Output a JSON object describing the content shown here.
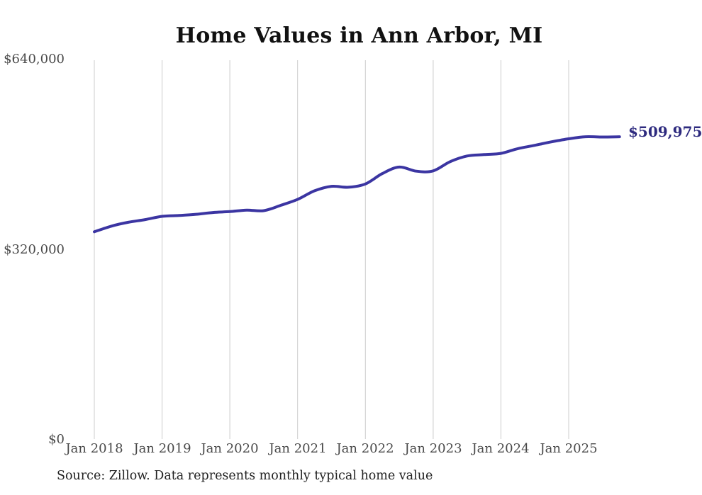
{
  "page": {
    "background": "#ffffff"
  },
  "chart": {
    "title": "Home Values in Ann Arbor, MI",
    "end_label": "$509,975",
    "source": "Source: Zillow. Data represents monthly typical home value",
    "colors": {
      "line": "#3b35a2",
      "end_label": "#2e2b7f",
      "gridline": "#cccccc",
      "tick_text": "#4a4a4a",
      "title_text": "#111111",
      "source_text": "#222222"
    }
  },
  "chart_data": {
    "type": "line",
    "title": "Home Values in Ann Arbor, MI",
    "series_name": "Typical home value (monthly, $)",
    "x": [
      "2018-01",
      "2018-04",
      "2018-07",
      "2018-10",
      "2019-01",
      "2019-04",
      "2019-07",
      "2019-10",
      "2020-01",
      "2020-04",
      "2020-07",
      "2020-10",
      "2021-01",
      "2021-04",
      "2021-07",
      "2021-10",
      "2022-01",
      "2022-04",
      "2022-07",
      "2022-10",
      "2023-01",
      "2023-04",
      "2023-07",
      "2023-10",
      "2024-01",
      "2024-04",
      "2024-07",
      "2024-10",
      "2025-01",
      "2025-04",
      "2025-07",
      "2025-10"
    ],
    "values": [
      350000,
      359500,
      366000,
      370500,
      376000,
      377500,
      379500,
      382500,
      384000,
      386500,
      385500,
      394500,
      404500,
      419000,
      426500,
      425000,
      430500,
      448000,
      459000,
      452000,
      452500,
      468000,
      477500,
      480000,
      482000,
      490000,
      495500,
      501500,
      506500,
      510000,
      509500,
      509975
    ],
    "last_point": {
      "x": "2025-10",
      "value": 509975,
      "label": "$509,975"
    },
    "x_ticks": [
      {
        "x": "2018-01",
        "label": "Jan 2018"
      },
      {
        "x": "2019-01",
        "label": "Jan 2019"
      },
      {
        "x": "2020-01",
        "label": "Jan 2020"
      },
      {
        "x": "2021-01",
        "label": "Jan 2021"
      },
      {
        "x": "2022-01",
        "label": "Jan 2022"
      },
      {
        "x": "2023-01",
        "label": "Jan 2023"
      },
      {
        "x": "2024-01",
        "label": "Jan 2024"
      },
      {
        "x": "2025-01",
        "label": "Jan 2025"
      }
    ],
    "y_ticks": [
      {
        "value": 0,
        "label": "$0"
      },
      {
        "value": 320000,
        "label": "$320,000"
      },
      {
        "value": 640000,
        "label": "$640,000"
      }
    ],
    "ylim": [
      0,
      640000
    ],
    "grid": "vertical-only",
    "legend": "none",
    "source": "Source: Zillow. Data represents monthly typical home value"
  }
}
